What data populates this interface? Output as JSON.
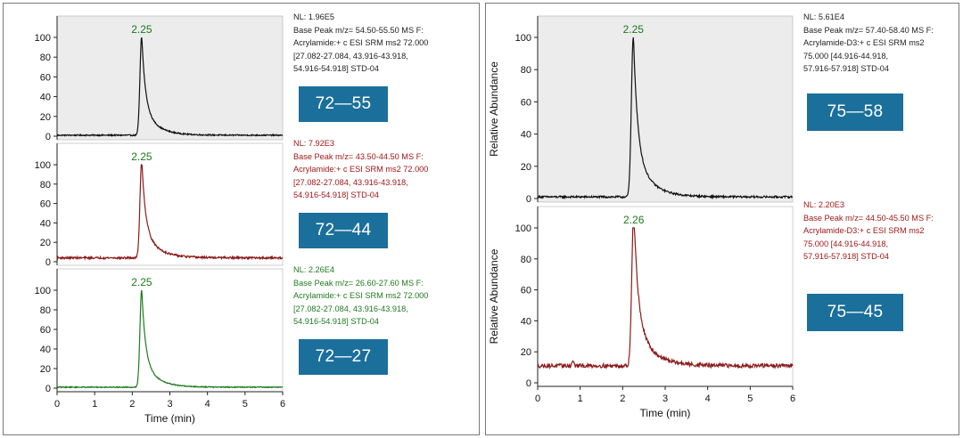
{
  "chart_data": [
    {
      "type": "line",
      "panel": "left",
      "xlabel": "Time (min)",
      "ylabel": "",
      "xlim": [
        0,
        6
      ],
      "ylim": [
        0,
        100
      ],
      "x_ticks": [
        0,
        1,
        2,
        3,
        4,
        5,
        6
      ],
      "y_ticks": [
        0,
        20,
        40,
        60,
        80,
        100
      ],
      "plots": [
        {
          "color": "#111111",
          "background": "#ececec",
          "peak_time": 2.25,
          "peak_label": "2.25",
          "peak_label_color": "#1a7a1a",
          "baseline": 1,
          "tail": 10,
          "noise": 0.6,
          "dip": null,
          "transition": "72—55",
          "info": [
            "NL: 1.96E5",
            "Base Peak m/z= 54.50-55.50 MS  F:",
            "Acrylamide:+ c ESI SRM ms2 72.000",
            "[27.082-27.084, 43.916-43.918,",
            "54.916-54.918] STD-04"
          ],
          "info_color": "#222222"
        },
        {
          "color": "#8b1a1a",
          "background": "#ffffff",
          "peak_time": 2.25,
          "peak_label": "2.25",
          "peak_label_color": "#1a7a1a",
          "baseline": 4,
          "tail": 14,
          "noise": 1.0,
          "dip": null,
          "transition": "72—44",
          "info": [
            "NL: 7.92E3",
            "Base Peak m/z= 43.50-44.50 MS  F:",
            "Acrylamide:+ c ESI SRM ms2 72.000",
            "[27.082-27.084, 43.916-43.918,",
            "54.916-54.918] STD-04"
          ],
          "info_color": "#a01818"
        },
        {
          "color": "#1f7a1f",
          "background": "#ffffff",
          "peak_time": 2.25,
          "peak_label": "2.25",
          "peak_label_color": "#1a7a1a",
          "baseline": 1,
          "tail": 8,
          "noise": 0.5,
          "dip": null,
          "transition": "72—27",
          "info": [
            "NL: 2.26E4",
            "Base Peak m/z= 26.60-27.60 MS  F:",
            "Acrylamide:+ c ESI SRM ms2 72.000",
            "[27.082-27.084, 43.916-43.918,",
            "54.916-54.918] STD-04"
          ],
          "info_color": "#1f7a1f"
        }
      ]
    },
    {
      "type": "line",
      "panel": "right",
      "xlabel": "Time (min)",
      "ylabel": "Relative Abundance",
      "xlim": [
        0,
        6
      ],
      "ylim": [
        0,
        100
      ],
      "x_ticks": [
        0,
        1,
        2,
        3,
        4,
        5,
        6
      ],
      "y_ticks": [
        0,
        20,
        40,
        60,
        80,
        100
      ],
      "plots": [
        {
          "color": "#111111",
          "background": "#ececec",
          "peak_time": 2.25,
          "peak_label": "2.25",
          "peak_label_color": "#1a7a1a",
          "baseline": 1,
          "tail": 10,
          "noise": 0.6,
          "dip": null,
          "transition": "75—58",
          "info": [
            "NL: 5.61E4",
            "Base Peak m/z= 57.40-58.40 MS  F:",
            "Acrylamide-D3:+ c ESI SRM ms2",
            "75.000 [44.916-44.918,",
            "57.916-57.918] STD-04"
          ],
          "info_color": "#222222"
        },
        {
          "color": "#8b1a1a",
          "background": "#ffffff",
          "peak_time": 2.26,
          "peak_label": "2.26",
          "peak_label_color": "#1a7a1a",
          "baseline": 11,
          "tail": 14,
          "noise": 1.3,
          "dip": 0.83,
          "transition": "75—45",
          "info": [
            "NL: 2.20E3",
            "Base Peak m/z= 44.50-45.50 MS  F:",
            "Acrylamide-D3:+ c ESI SRM ms2",
            "75.000 [44.916-44.918,",
            "57.916-57.918] STD-04"
          ],
          "info_color": "#a01818"
        }
      ]
    }
  ]
}
